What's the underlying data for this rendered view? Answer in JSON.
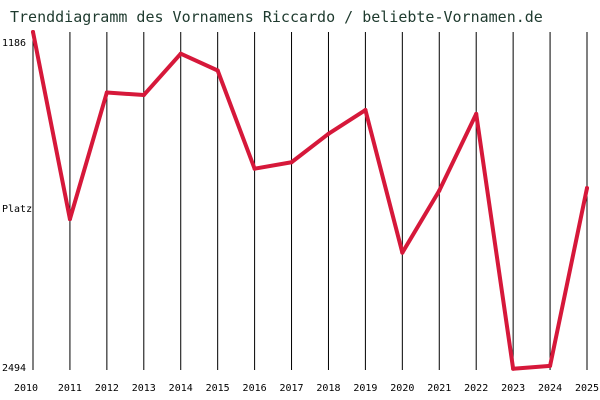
{
  "chart_data": {
    "type": "line",
    "title": "Trenddiagramm des Vornamens Riccardo / beliebte-Vornamen.de",
    "ylabel": "Platz",
    "y_axis_inverted": true,
    "y_ticks": [
      "1186",
      "2494"
    ],
    "ylim": [
      1186,
      2494
    ],
    "x": [
      "2010",
      "2011",
      "2012",
      "2013",
      "2014",
      "2015",
      "2016",
      "2017",
      "2018",
      "2019",
      "2020",
      "2021",
      "2022",
      "2023",
      "2024",
      "2025"
    ],
    "series": [
      {
        "values": [
          1186,
          1910,
          1420,
          1430,
          1270,
          1335,
          1715,
          1690,
          1580,
          1488,
          2040,
          1800,
          1503,
          2489,
          2478,
          1790
        ],
        "color": "#d6183a"
      }
    ],
    "grid": "vertical"
  }
}
